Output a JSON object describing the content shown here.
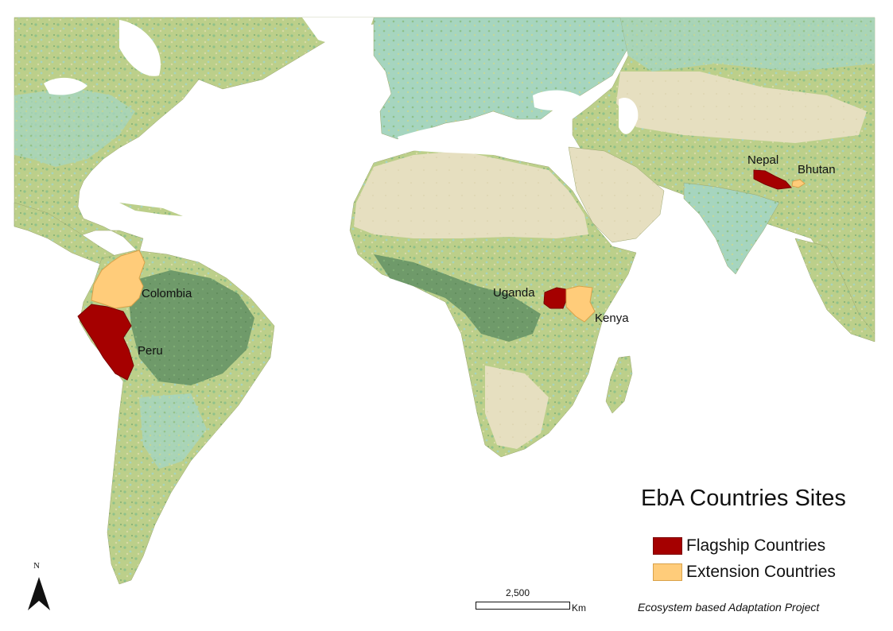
{
  "legend": {
    "title": "EbA Countries Sites",
    "items": [
      {
        "label": "Flagship Countries",
        "color": "#a50000"
      },
      {
        "label": "Extension Countries",
        "color": "#ffcc7a"
      }
    ]
  },
  "countries": {
    "flagship": [
      "Nepal",
      "Peru",
      "Uganda"
    ],
    "extension": [
      "Colombia",
      "Kenya",
      "Bhutan"
    ]
  },
  "labels": {
    "nepal": "Nepal",
    "bhutan": "Bhutan",
    "colombia": "Colombia",
    "peru": "Peru",
    "uganda": "Uganda",
    "kenya": "Kenya"
  },
  "north_arrow": {
    "letter": "N"
  },
  "scale": {
    "value": "2,500",
    "unit": "Km"
  },
  "credit": "Ecosystem based Adaptation Project",
  "land_colors": {
    "forest": "#6f9a6a",
    "vegetation": "#bccf8a",
    "green": "#8fc18a",
    "teal": "#9fd3be",
    "desert": "#e6dfc0",
    "water": "#7f86c6"
  }
}
